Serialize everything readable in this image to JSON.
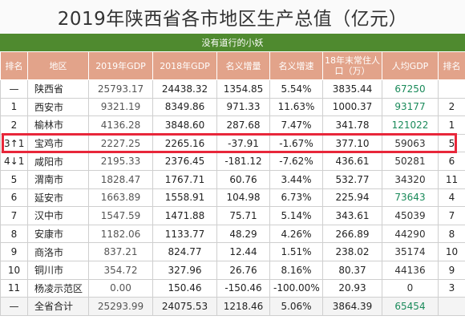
{
  "title": "2019年陕西省各市地区生产总值（亿元）",
  "subtitle": "没有道行的小妖",
  "headers": [
    "排名",
    "地区",
    "2019年GDP",
    "2018年GDP",
    "名义增量",
    "名义增速",
    "18年末常住人口（万）",
    "人均GDP",
    "排名"
  ],
  "rows": [
    {
      "rank": "—",
      "area": "陕西省",
      "gdp2019": "25793.17",
      "gdp2018": "24438.32",
      "increase": "1354.85",
      "growth": "5.54%",
      "pop": "3835.44",
      "per_capita": "67250",
      "rank2": ""
    },
    {
      "rank": "1",
      "area": "西安市",
      "gdp2019": "9321.19",
      "gdp2018": "8349.86",
      "increase": "971.33",
      "growth": "11.63%",
      "pop": "1000.37",
      "per_capita": "93177",
      "rank2": "2"
    },
    {
      "rank": "2",
      "area": "榆林市",
      "gdp2019": "4136.28",
      "gdp2018": "3848.60",
      "increase": "287.68",
      "growth": "7.47%",
      "pop": "341.78",
      "per_capita": "121022",
      "rank2": "1"
    },
    {
      "rank": "3↑1",
      "area": "宝鸡市",
      "gdp2019": "2227.25",
      "gdp2018": "2265.16",
      "increase": "-37.91",
      "growth": "-1.67%",
      "pop": "377.10",
      "per_capita": "59063",
      "rank2": "5"
    },
    {
      "rank": "4↓1",
      "area": "咸阳市",
      "gdp2019": "2195.33",
      "gdp2018": "2376.45",
      "increase": "-181.12",
      "growth": "-7.62%",
      "pop": "436.61",
      "per_capita": "50281",
      "rank2": "6"
    },
    {
      "rank": "5",
      "area": "渭南市",
      "gdp2019": "1828.47",
      "gdp2018": "1767.71",
      "increase": "60.76",
      "growth": "3.44%",
      "pop": "532.77",
      "per_capita": "34320",
      "rank2": "11"
    },
    {
      "rank": "6",
      "area": "延安市",
      "gdp2019": "1663.89",
      "gdp2018": "1558.91",
      "increase": "104.98",
      "growth": "6.73%",
      "pop": "225.94",
      "per_capita": "73643",
      "rank2": "4"
    },
    {
      "rank": "7",
      "area": "汉中市",
      "gdp2019": "1547.59",
      "gdp2018": "1471.88",
      "increase": "75.71",
      "growth": "5.14%",
      "pop": "343.61",
      "per_capita": "45039",
      "rank2": "7"
    },
    {
      "rank": "8",
      "area": "安康市",
      "gdp2019": "1182.06",
      "gdp2018": "1133.77",
      "increase": "48.29",
      "growth": "4.26%",
      "pop": "266.89",
      "per_capita": "44290",
      "rank2": "8"
    },
    {
      "rank": "9",
      "area": "商洛市",
      "gdp2019": "837.21",
      "gdp2018": "824.77",
      "increase": "12.44",
      "growth": "1.51%",
      "pop": "238.02",
      "per_capita": "35174",
      "rank2": "10"
    },
    {
      "rank": "10",
      "area": "铜川市",
      "gdp2019": "354.72",
      "gdp2018": "327.96",
      "increase": "26.76",
      "growth": "8.16%",
      "pop": "80.37",
      "per_capita": "44136",
      "rank2": "9"
    },
    {
      "rank": "11",
      "area": "杨凌示范区",
      "gdp2019": "0.00",
      "gdp2018": "150.46",
      "increase": "-150.46",
      "growth": "-100.00%",
      "pop": "20.93",
      "per_capita": "0",
      "rank2": "3"
    },
    {
      "rank": "—",
      "area": "全省合计",
      "gdp2019": "25293.99",
      "gdp2018": "24075.53",
      "increase": "1218.46",
      "growth": "5.06%",
      "pop": "3864.39",
      "per_capita": "65454",
      "rank2": ""
    }
  ],
  "colors": {
    "subtitle_bg": "#4f8a2f",
    "header_bg": "#e2a38a",
    "highlight_border": "#e8273a",
    "per_capita_accent": "#1a8a5a"
  }
}
